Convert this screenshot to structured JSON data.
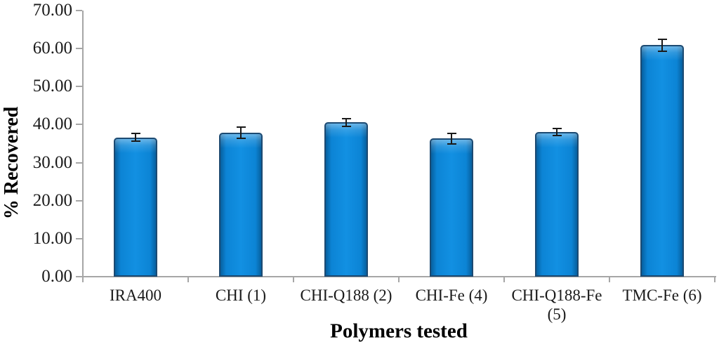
{
  "figure": {
    "background_color": "#ffffff",
    "axis_color": "#a6a6a6",
    "text_color": "#1a1a1a"
  },
  "chart_data": {
    "type": "bar",
    "title": "",
    "xlabel": "Polymers tested",
    "ylabel": "% Recovered",
    "categories": [
      "IRA400",
      "CHI (1)",
      "CHI-Q188 (2)",
      "CHI-Fe (4)",
      "CHI-Q188-Fe (5)",
      "TMC-Fe (6)"
    ],
    "values": [
      36.6,
      37.8,
      40.6,
      36.3,
      38.0,
      60.9
    ],
    "error_bars": [
      1.0,
      1.5,
      1.0,
      1.4,
      0.9,
      1.6
    ],
    "ylim": [
      0,
      70
    ],
    "yticks": [
      {
        "value": 0,
        "label": "0.00"
      },
      {
        "value": 10,
        "label": "10.00"
      },
      {
        "value": 20,
        "label": "20.00"
      },
      {
        "value": 30,
        "label": "30.00"
      },
      {
        "value": 40,
        "label": "40.00"
      },
      {
        "value": 50,
        "label": "50.00"
      },
      {
        "value": 60,
        "label": "60.00"
      },
      {
        "value": 70,
        "label": "70.00"
      }
    ],
    "grid": false,
    "legend": false,
    "bar_fill_color": "#0d84d4",
    "bar_border_color": "#1c4a72",
    "error_bar_color": "#1a1a1a"
  }
}
